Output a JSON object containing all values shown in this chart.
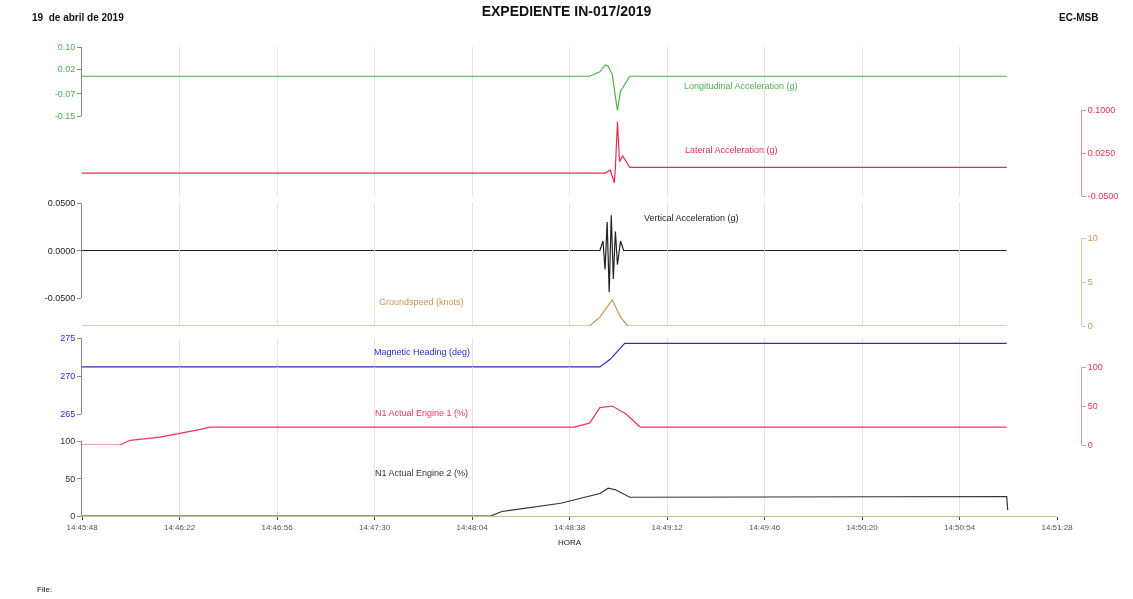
{
  "chart_data": [
    {
      "type": "line",
      "title": "EXPEDIENTE IN-017/2019",
      "annotations": [
        "19  de abril de 2019",
        "EC-MSB"
      ],
      "legend": false,
      "line_style": "solid",
      "grid": "x",
      "marker": "none",
      "tick_labels": "y",
      "xlim": [
        14.763333,
        14.857778
      ],
      "ylim": [
        -0.15,
        0.1
      ],
      "yticks": [
        {
          "value": 0.1,
          "label": "0.10"
        },
        {
          "value": 0.02,
          "label": "0.02"
        },
        {
          "value": -0.07,
          "label": "-0.07"
        },
        {
          "value": -0.15,
          "label": "-0.15"
        }
      ],
      "series": [
        {
          "name": "Longitudinal Acceleration (g)",
          "color": "#4caf50",
          "x": [
            14.763333,
            14.8125,
            14.8135,
            14.814,
            14.8143,
            14.8147,
            14.815,
            14.8152,
            14.8155,
            14.8164,
            14.8529
          ],
          "values": [
            -0.006,
            -0.006,
            0.01,
            0.035,
            0.03,
            0.0,
            -0.08,
            -0.13,
            -0.06,
            -0.006,
            -0.006
          ]
        }
      ]
    },
    {
      "type": "line",
      "legend": false,
      "grid": "x",
      "marker": "none",
      "tick_labels": "y",
      "xlim": [
        14.763333,
        14.857778
      ],
      "line_style": "solid",
      "ylim": [
        -0.05,
        0.1
      ],
      "yticks": [
        {
          "value": 0.1,
          "label": "0.1000"
        },
        {
          "value": 0.025,
          "label": "0.0250"
        },
        {
          "value": -0.05,
          "label": "-0.0500"
        }
      ],
      "series": [
        {
          "name": "Lateral Acceleration (g)",
          "color": "#e0304e",
          "x": [
            14.763333,
            14.814,
            14.8145,
            14.8149,
            14.815,
            14.8152,
            14.8154,
            14.8157,
            14.8164,
            14.8529
          ],
          "values": [
            -0.01,
            -0.01,
            -0.005,
            -0.027,
            0.0,
            0.079,
            0.01,
            0.02,
            0.0,
            0.0
          ]
        }
      ]
    },
    {
      "type": "line",
      "legend": false,
      "grid": "x",
      "marker": "none",
      "tick_labels": "y",
      "xlim": [
        14.763333,
        14.857778
      ],
      "line_style": "solid",
      "ylim": [
        -0.05,
        0.05
      ],
      "yticks": [
        {
          "value": 0.05,
          "label": "0.0500"
        },
        {
          "value": 0,
          "label": "0.0000"
        },
        {
          "value": -0.05,
          "label": "-0.0500"
        }
      ],
      "series": [
        {
          "name": "Vertical Acceleration (g)",
          "color": "#222222",
          "x": [
            14.763333,
            14.8135,
            14.8138,
            14.814,
            14.8142,
            14.8144,
            14.8146,
            14.8148,
            14.815,
            14.8152,
            14.8155,
            14.8158,
            14.8529
          ],
          "values": [
            0,
            0,
            0.01,
            -0.02,
            0.03,
            -0.044,
            0.037,
            -0.03,
            0.02,
            -0.015,
            0.01,
            0,
            0
          ]
        }
      ]
    },
    {
      "type": "line",
      "legend": false,
      "grid": "x",
      "marker": "none",
      "tick_labels": "y",
      "xlim": [
        14.763333,
        14.857778
      ],
      "line_style": "solid",
      "ylim": [
        0,
        10
      ],
      "yticks": [
        0,
        5,
        10
      ],
      "series": [
        {
          "name": "Groundspeed (knots)",
          "color": "#c8955a",
          "x": [
            14.763333,
            14.8125,
            14.8135,
            14.8147,
            14.8155,
            14.8162,
            14.8529
          ],
          "values": [
            0,
            0,
            1,
            3,
            1,
            0,
            0
          ]
        }
      ]
    },
    {
      "type": "line",
      "legend": false,
      "grid": "x",
      "marker": "none",
      "tick_labels": "y",
      "xlim": [
        14.763333,
        14.857778
      ],
      "line_style": "solid",
      "ylim": [
        265,
        275
      ],
      "yticks": [
        265,
        270,
        275
      ],
      "series": [
        {
          "name": "Magnetic Heading (deg)",
          "color": "#2a2acf",
          "x": [
            14.763333,
            14.8135,
            14.8145,
            14.8159,
            14.8529
          ],
          "values": [
            271.2,
            271.2,
            272.2,
            274.3,
            274.3
          ]
        }
      ]
    },
    {
      "type": "line",
      "legend": false,
      "grid": "x",
      "marker": "none",
      "tick_labels": "y",
      "xlim": [
        14.763333,
        14.857778
      ],
      "ylim": [
        0,
        100
      ],
      "yticks": [
        0,
        50,
        100
      ],
      "series": [
        {
          "name": "N1 Actual Engine 1 (%)",
          "line_style": "solid",
          "color": "#e8365a",
          "x": [
            14.763333,
            14.767,
            14.768,
            14.7709,
            14.7748,
            14.7757,
            14.811,
            14.8125,
            14.8135,
            14.8147,
            14.816,
            14.8174,
            14.8529
          ],
          "values": [
            0,
            0,
            6,
            10,
            20,
            23,
            23,
            28,
            48,
            50,
            40,
            23,
            23
          ]
        }
      ]
    },
    {
      "type": "line",
      "xlabel": "HORA",
      "annotations": [
        "File:"
      ],
      "legend": false,
      "line_style": "solid",
      "grid": "x",
      "marker": "none",
      "xlim": [
        14.763333,
        14.857778
      ],
      "xticks": [
        {
          "value": 14.763333,
          "label": "14:45:48"
        },
        {
          "value": 14.772778,
          "label": "14:46:22"
        },
        {
          "value": 14.782222,
          "label": "14:46:56"
        },
        {
          "value": 14.791667,
          "label": "14:47:30"
        },
        {
          "value": 14.801111,
          "label": "14:48:04"
        },
        {
          "value": 14.810556,
          "label": "14:48:38"
        },
        {
          "value": 14.82,
          "label": "14:49:12"
        },
        {
          "value": 14.829444,
          "label": "14:49:46"
        },
        {
          "value": 14.838889,
          "label": "14:50:20"
        },
        {
          "value": 14.848333,
          "label": "14:50:54"
        },
        {
          "value": 14.857778,
          "label": "14:51:28"
        }
      ],
      "ylim": [
        0,
        100
      ],
      "yticks": [
        0,
        50,
        100
      ],
      "series": [
        {
          "name": "N1 Actual Engine 2 (%)",
          "color": "#333333",
          "x": [
            14.763333,
            14.8029,
            14.804,
            14.8097,
            14.8135,
            14.8143,
            14.815,
            14.8164,
            14.8529,
            14.853
          ],
          "values": [
            0,
            0,
            6,
            17,
            30,
            37,
            35,
            25,
            26,
            8
          ]
        }
      ]
    }
  ]
}
